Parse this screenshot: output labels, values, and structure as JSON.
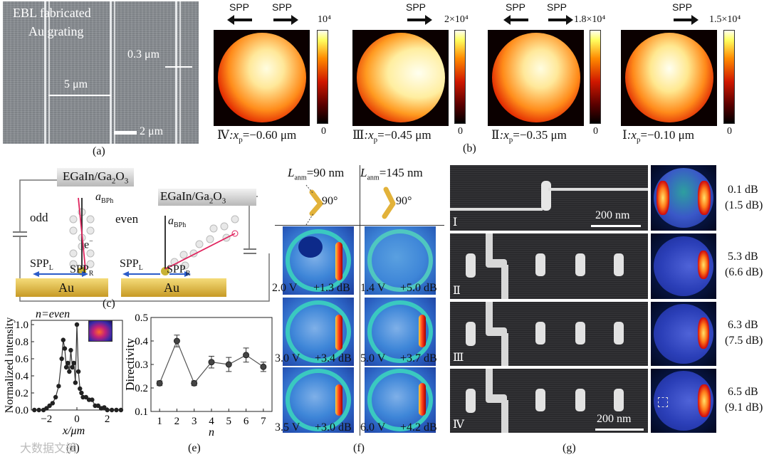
{
  "panel_a": {
    "label": "(a)",
    "title_line1": "EBL fabricated",
    "title_line2": "Au grating",
    "dim_width": "0.3 μm",
    "dim_period": "5 μm",
    "scalebar": "2 μm"
  },
  "panel_b": {
    "label": "(b)",
    "spp": "SPP",
    "maps": [
      {
        "cbar_max": "10⁴",
        "cbar_min": "0",
        "caption_roman": "Ⅳ",
        "caption": ":x",
        "sub": "p",
        "value": "=−0.60 μm"
      },
      {
        "cbar_max": "2×10⁴",
        "cbar_min": "0",
        "caption_roman": "Ⅲ",
        "caption": ":x",
        "sub": "p",
        "value": "=−0.45 μm"
      },
      {
        "cbar_max": "1.8×10⁴",
        "cbar_min": "0",
        "caption_roman": "Ⅱ",
        "caption": ":x",
        "sub": "p",
        "value": "=−0.35 μm"
      },
      {
        "cbar_max": "1.5×10⁴",
        "cbar_min": "0",
        "caption_roman": "Ⅰ",
        "caption": ":x",
        "sub": "p",
        "value": "=−0.10 μm"
      }
    ]
  },
  "panel_c": {
    "label": "(c)",
    "electrode": "EGaIn/Ga",
    "electrode_sub": "2",
    "electrode_o": "O",
    "electrode_sub2": "3",
    "odd": "odd",
    "even": "even",
    "a": "a",
    "a_sub": "BPh",
    "e": "e",
    "e_sup": "−",
    "spp": "SPP",
    "L": "L",
    "R": "R",
    "au": "Au"
  },
  "panel_d": {
    "label": "(d)",
    "ylabel": "Normalized intensity",
    "xlabel": "x/μm",
    "annotation": "n=even",
    "yticks": [
      "0.0",
      "0.2",
      "0.4",
      "0.6",
      "0.8",
      "1.0"
    ],
    "xticks": [
      "−2",
      "0",
      "2"
    ]
  },
  "panel_e": {
    "label": "(e)",
    "ylabel": "Directivity",
    "xlabel": "n",
    "yticks": [
      "0.1",
      "0.2",
      "0.3",
      "0.4",
      "0.5"
    ],
    "xticks": [
      "1",
      "2",
      "3",
      "4",
      "5",
      "6",
      "7"
    ]
  },
  "panel_f": {
    "label": "(f)",
    "L1": "L",
    "L_sub": "anm",
    "L1_val": "=90 nm",
    "L2_val": "=145 nm",
    "angle": "90°",
    "rows": [
      [
        "2.0 V",
        "+1.3 dB",
        "1.4 V",
        "+5.0 dB"
      ],
      [
        "3.0 V",
        "+3.4 dB",
        "5.0 V",
        "+3.7 dB"
      ],
      [
        "3.5 V",
        "+3.0 dB",
        "6.0 V",
        "+4.2 dB"
      ]
    ]
  },
  "panel_g": {
    "label": "(g)",
    "scalebar": "200 nm",
    "rows": [
      {
        "roman": "Ⅰ",
        "db": "0.1 dB",
        "db2": "(1.5 dB)"
      },
      {
        "roman": "Ⅱ",
        "db": "5.3 dB",
        "db2": "(6.6 dB)"
      },
      {
        "roman": "Ⅲ",
        "db": "6.3 dB",
        "db2": "(7.5 dB)"
      },
      {
        "roman": "Ⅳ",
        "db": "6.5 dB",
        "db2": "(9.1 dB)"
      }
    ]
  },
  "watermark": "大数据文摘",
  "chart_data": [
    {
      "type": "line",
      "panel": "d",
      "title": "",
      "xlabel": "x/μm",
      "ylabel": "Normalized intensity",
      "xlim": [
        -3,
        3
      ],
      "ylim": [
        0,
        1.05
      ],
      "x": [
        -2.8,
        -2.5,
        -2.2,
        -2.0,
        -1.8,
        -1.6,
        -1.4,
        -1.2,
        -1.0,
        -0.9,
        -0.8,
        -0.7,
        -0.6,
        -0.5,
        -0.4,
        -0.3,
        -0.2,
        -0.1,
        0.0,
        0.1,
        0.2,
        0.3,
        0.4,
        0.6,
        0.8,
        1.0,
        1.2,
        1.4,
        1.6,
        1.8,
        2.0,
        2.3,
        2.6,
        2.9
      ],
      "y": [
        0.0,
        0.0,
        0.0,
        0.02,
        0.05,
        0.08,
        0.15,
        0.28,
        0.6,
        0.82,
        0.72,
        0.5,
        0.55,
        0.45,
        0.7,
        0.5,
        0.55,
        0.32,
        1.0,
        0.45,
        0.25,
        0.2,
        0.15,
        0.15,
        0.12,
        0.12,
        0.05,
        0.05,
        0.02,
        0.03,
        0.0,
        0.0,
        0.0,
        0.0
      ]
    },
    {
      "type": "line",
      "panel": "e",
      "title": "",
      "xlabel": "n",
      "ylabel": "Directivity",
      "xlim": [
        0.5,
        7.5
      ],
      "ylim": [
        0.1,
        0.5
      ],
      "x": [
        1,
        2,
        3,
        4,
        5,
        6,
        7
      ],
      "y": [
        0.22,
        0.4,
        0.22,
        0.31,
        0.3,
        0.34,
        0.29
      ],
      "err": [
        0.01,
        0.025,
        0.01,
        0.025,
        0.03,
        0.03,
        0.02
      ]
    }
  ]
}
